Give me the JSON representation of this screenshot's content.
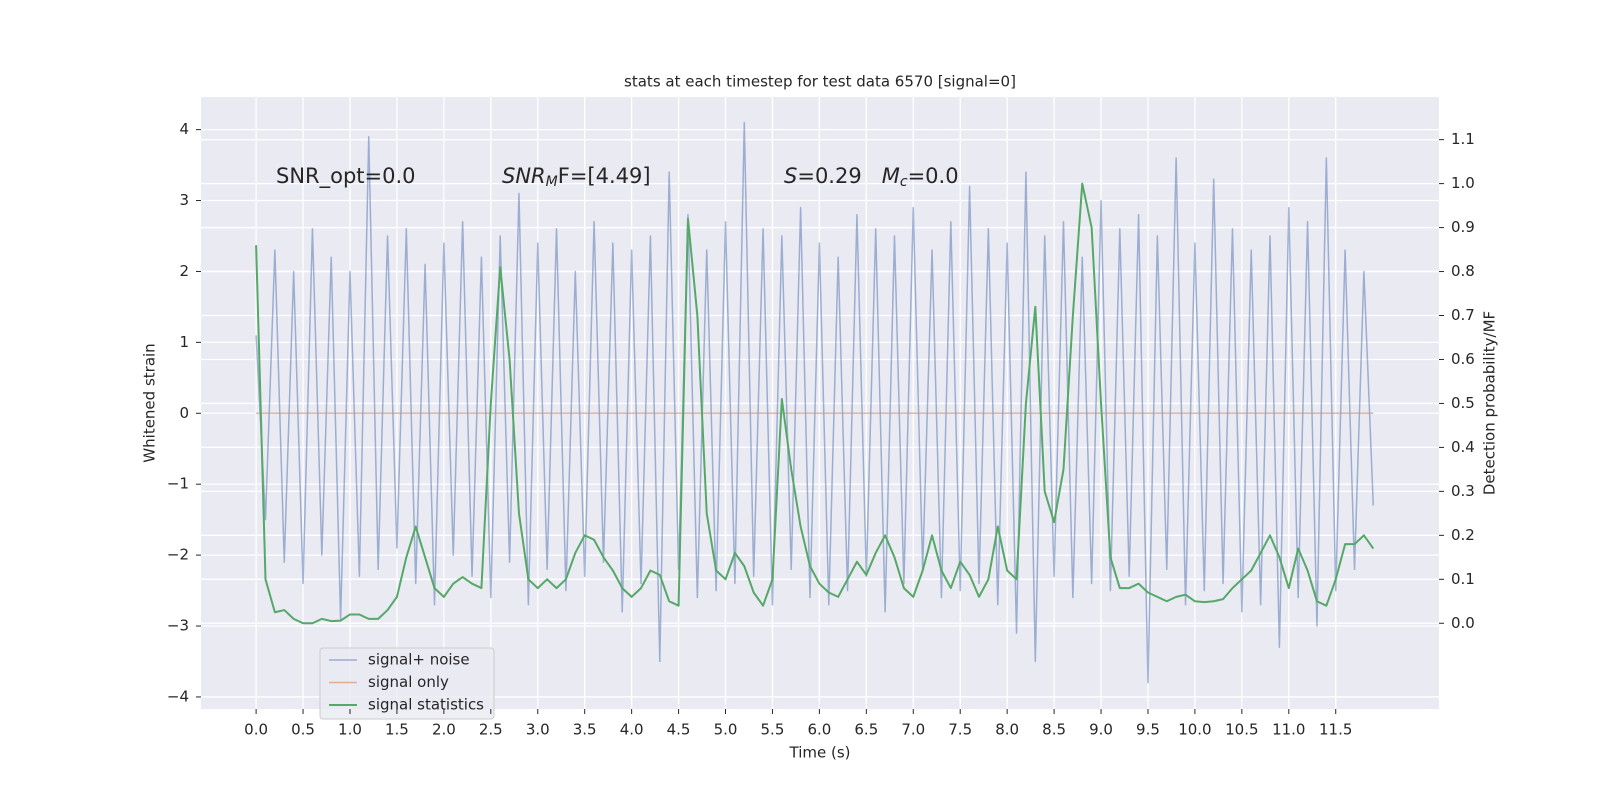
{
  "chart_data": {
    "type": "line",
    "title": "stats at each timestep for test data 6570 [signal=0]",
    "xlabel": "Time (s)",
    "ylabel": "Whitened strain",
    "y2label": "Detection probability/MF",
    "annotations": [
      [
        "SNR_opt=0.0"
      ],
      [
        "SNR",
        "M",
        "F=[4.49]"
      ],
      [
        "S",
        "=0.29   ",
        "M",
        "c",
        "=0.0"
      ]
    ],
    "xlim": [
      -0.587,
      12.6
    ],
    "ylim": [
      -4.17,
      4.46
    ],
    "y2lim": [
      -0.195,
      1.197
    ],
    "grid": true,
    "legend": "lower left",
    "xticks": [
      {
        "value": 0,
        "label": "0.0"
      },
      {
        "value": 0.5,
        "label": "0.5"
      },
      {
        "value": 1,
        "label": "1.0"
      },
      {
        "value": 1.5,
        "label": "1.5"
      },
      {
        "value": 2,
        "label": "2.0"
      },
      {
        "value": 2.5,
        "label": "2.5"
      },
      {
        "value": 3,
        "label": "3.0"
      },
      {
        "value": 3.5,
        "label": "3.5"
      },
      {
        "value": 4,
        "label": "4.0"
      },
      {
        "value": 4.5,
        "label": "4.5"
      },
      {
        "value": 5,
        "label": "5.0"
      },
      {
        "value": 5.5,
        "label": "5.5"
      },
      {
        "value": 6,
        "label": "6.0"
      },
      {
        "value": 6.5,
        "label": "6.5"
      },
      {
        "value": 7,
        "label": "7.0"
      },
      {
        "value": 7.5,
        "label": "7.5"
      },
      {
        "value": 8,
        "label": "8.0"
      },
      {
        "value": 8.5,
        "label": "8.5"
      },
      {
        "value": 9,
        "label": "9.0"
      },
      {
        "value": 9.5,
        "label": "9.5"
      },
      {
        "value": 10,
        "label": "10.0"
      },
      {
        "value": 10.5,
        "label": "10.5"
      },
      {
        "value": 11,
        "label": "11.0"
      },
      {
        "value": 11.5,
        "label": "11.5"
      }
    ],
    "yticks": [
      {
        "value": -4,
        "label": "−4"
      },
      {
        "value": -3,
        "label": "−3"
      },
      {
        "value": -2,
        "label": "−2"
      },
      {
        "value": -1,
        "label": "−1"
      },
      0,
      1,
      2,
      3,
      4
    ],
    "y2ticks": [
      {
        "value": 0,
        "label": "0.0"
      },
      {
        "value": 0.1,
        "label": "0.1"
      },
      {
        "value": 0.2,
        "label": "0.2"
      },
      {
        "value": 0.3,
        "label": "0.3"
      },
      {
        "value": 0.4,
        "label": "0.4"
      },
      {
        "value": 0.5,
        "label": "0.5"
      },
      {
        "value": 0.6,
        "label": "0.6"
      },
      {
        "value": 0.7,
        "label": "0.7"
      },
      {
        "value": 0.8,
        "label": "0.8"
      },
      {
        "value": 0.9,
        "label": "0.9"
      },
      {
        "value": 1,
        "label": "1.0"
      },
      {
        "value": 1.1,
        "label": "1.1"
      }
    ],
    "x": [
      0,
      0.1,
      0.2,
      0.3,
      0.4,
      0.5,
      0.6,
      0.7,
      0.8,
      0.9,
      1,
      1.1,
      1.2,
      1.3,
      1.4,
      1.5,
      1.6,
      1.7,
      1.8,
      1.9,
      2,
      2.1,
      2.2,
      2.3,
      2.4,
      2.5,
      2.6,
      2.7,
      2.8,
      2.9,
      3,
      3.1,
      3.2,
      3.3,
      3.4,
      3.5,
      3.6,
      3.7,
      3.8,
      3.9,
      4,
      4.1,
      4.2,
      4.3,
      4.4,
      4.5,
      4.6,
      4.7,
      4.8,
      4.9,
      5,
      5.1,
      5.2,
      5.3,
      5.4,
      5.5,
      5.6,
      5.7,
      5.8,
      5.9,
      6,
      6.1,
      6.2,
      6.3,
      6.4,
      6.5,
      6.6,
      6.7,
      6.8,
      6.9,
      7,
      7.1,
      7.2,
      7.3,
      7.4,
      7.5,
      7.6,
      7.7,
      7.8,
      7.9,
      8,
      8.1,
      8.2,
      8.3,
      8.4,
      8.5,
      8.6,
      8.7,
      8.8,
      8.9,
      9,
      9.1,
      9.2,
      9.3,
      9.4,
      9.5,
      9.6,
      9.7,
      9.8,
      9.9,
      10,
      10.1,
      10.2,
      10.3,
      10.4,
      10.5,
      10.6,
      10.7,
      10.8,
      10.9,
      11,
      11.1,
      11.2,
      11.3,
      11.4,
      11.5,
      11.6,
      11.7,
      11.8,
      11.9
    ],
    "series": [
      {
        "name": "signal+ noise",
        "color": "#4c72b0",
        "values": [
          1.1,
          -1.5,
          2.3,
          -2.1,
          2.0,
          -2.4,
          2.6,
          -2.0,
          2.2,
          -2.9,
          2.0,
          -2.3,
          3.9,
          -2.2,
          2.5,
          -1.9,
          2.6,
          -2.4,
          2.1,
          -2.7,
          2.4,
          -2.0,
          2.7,
          -2.3,
          2.2,
          -2.6,
          2.5,
          -2.1,
          3.1,
          -2.7,
          2.4,
          -2.2,
          2.6,
          -2.5,
          2.0,
          -2.3,
          2.7,
          -2.1,
          2.4,
          -2.8,
          2.3,
          -2.4,
          2.5,
          -3.5,
          3.4,
          -2.2,
          2.8,
          -2.6,
          2.3,
          -2.5,
          2.7,
          -2.4,
          4.1,
          -2.3,
          2.6,
          -2.7,
          2.5,
          -2.2,
          2.9,
          -2.6,
          2.4,
          -2.7,
          2.2,
          -2.5,
          2.8,
          -2.3,
          2.6,
          -2.8,
          2.5,
          -2.4,
          2.9,
          -2.2,
          2.3,
          -2.6,
          2.7,
          -2.5,
          3.2,
          -2.4,
          2.6,
          -2.7,
          2.4,
          -3.1,
          3.4,
          -3.5,
          2.5,
          -2.3,
          2.7,
          -2.6,
          2.2,
          -2.4,
          3.0,
          -2.5,
          2.6,
          -2.3,
          2.8,
          -3.8,
          2.5,
          -2.2,
          3.6,
          -2.7,
          2.4,
          -2.5,
          3.3,
          -2.4,
          2.6,
          -2.8,
          2.3,
          -2.7,
          2.5,
          -3.3,
          2.9,
          -2.6,
          2.7,
          -3.0,
          3.6,
          -2.5,
          2.3,
          -2.2,
          2.0,
          -1.3
        ]
      },
      {
        "name": "signal only",
        "color": "#dd8452",
        "values": [
          0,
          0,
          0,
          0,
          0,
          0,
          0,
          0,
          0,
          0,
          0,
          0,
          0,
          0,
          0,
          0,
          0,
          0,
          0,
          0,
          0,
          0,
          0,
          0,
          0,
          0,
          0,
          0,
          0,
          0,
          0,
          0,
          0,
          0,
          0,
          0,
          0,
          0,
          0,
          0,
          0,
          0,
          0,
          0,
          0,
          0,
          0,
          0,
          0,
          0,
          0,
          0,
          0,
          0,
          0,
          0,
          0,
          0,
          0,
          0,
          0,
          0,
          0,
          0,
          0,
          0,
          0,
          0,
          0,
          0,
          0,
          0,
          0,
          0,
          0,
          0,
          0,
          0,
          0,
          0,
          0,
          0,
          0,
          0,
          0,
          0,
          0,
          0,
          0,
          0,
          0,
          0,
          0,
          0,
          0,
          0,
          0,
          0,
          0,
          0,
          0,
          0,
          0,
          0,
          0,
          0,
          0,
          0,
          0,
          0,
          0,
          0,
          0,
          0,
          0,
          0,
          0,
          0,
          0,
          0
        ]
      },
      {
        "name": "signal statistics",
        "color": "#55a868",
        "axis": "y2",
        "values": [
          0.86,
          0.1,
          0.025,
          0.03,
          0.01,
          0,
          0,
          0.01,
          0.005,
          0.006,
          0.02,
          0.02,
          0.01,
          0.01,
          0.03,
          0.06,
          0.15,
          0.22,
          0.15,
          0.08,
          0.06,
          0.09,
          0.105,
          0.09,
          0.08,
          0.5,
          0.81,
          0.6,
          0.25,
          0.1,
          0.08,
          0.1,
          0.08,
          0.1,
          0.16,
          0.2,
          0.19,
          0.15,
          0.12,
          0.08,
          0.06,
          0.08,
          0.12,
          0.11,
          0.05,
          0.04,
          0.92,
          0.7,
          0.25,
          0.12,
          0.1,
          0.16,
          0.13,
          0.07,
          0.04,
          0.1,
          0.51,
          0.35,
          0.22,
          0.13,
          0.09,
          0.07,
          0.06,
          0.1,
          0.14,
          0.11,
          0.16,
          0.2,
          0.15,
          0.08,
          0.06,
          0.12,
          0.2,
          0.12,
          0.08,
          0.14,
          0.11,
          0.06,
          0.1,
          0.22,
          0.12,
          0.1,
          0.5,
          0.72,
          0.3,
          0.23,
          0.35,
          0.7,
          1.0,
          0.9,
          0.5,
          0.15,
          0.08,
          0.08,
          0.09,
          0.07,
          0.06,
          0.05,
          0.06,
          0.065,
          0.05,
          0.048,
          0.05,
          0.055,
          0.08,
          0.1,
          0.12,
          0.16,
          0.2,
          0.15,
          0.08,
          0.17,
          0.12,
          0.05,
          0.04,
          0.1,
          0.18,
          0.18,
          0.2,
          0.17
        ]
      }
    ]
  }
}
